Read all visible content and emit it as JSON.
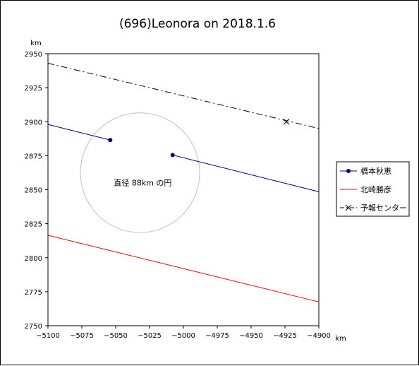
{
  "chart_data": {
    "type": "line",
    "title": "(696)Leonora on 2018.1.6",
    "xunit": "km",
    "yunit": "km",
    "xlim": [
      -5100,
      -4900
    ],
    "ylim": [
      2750,
      2950
    ],
    "xticks": [
      -5100,
      -5075,
      -5050,
      -5025,
      -5000,
      -4975,
      -4950,
      -4925,
      -4900
    ],
    "yticks": [
      2750,
      2775,
      2800,
      2825,
      2850,
      2875,
      2900,
      2925,
      2950
    ],
    "grid": false,
    "legend_position": "right",
    "series": [
      {
        "name": "橋本秋恵",
        "color": "#000080",
        "style": "solid",
        "marker": "dot",
        "segments": [
          [
            [
              -5100,
              2898
            ],
            [
              -5054,
              2886.5
            ]
          ],
          [
            [
              -5008,
              2875.5
            ],
            [
              -4900,
              2848.5
            ]
          ]
        ],
        "markers": [
          [
            -5054,
            2886.5
          ],
          [
            -5008,
            2875.5
          ]
        ]
      },
      {
        "name": "北崎勝彦",
        "color": "#ff0000",
        "style": "solid",
        "marker": "none",
        "segments": [
          [
            [
              -5100,
              2816.5
            ],
            [
              -4900,
              2767.5
            ]
          ]
        ],
        "markers": []
      },
      {
        "name": "予報センター",
        "color": "#000000",
        "style": "dashdot",
        "marker": "x",
        "segments": [
          [
            [
              -5100,
              2943
            ],
            [
              -4900,
              2895
            ]
          ]
        ],
        "markers": [
          [
            -4924,
            2900
          ]
        ]
      }
    ],
    "circle": {
      "cx": -5032,
      "cy": 2862.5,
      "diameter_km": 88,
      "color": "#c0c0c0"
    },
    "annotation": {
      "text": "直径 88km の円",
      "x": -5030,
      "y": 2853
    }
  }
}
